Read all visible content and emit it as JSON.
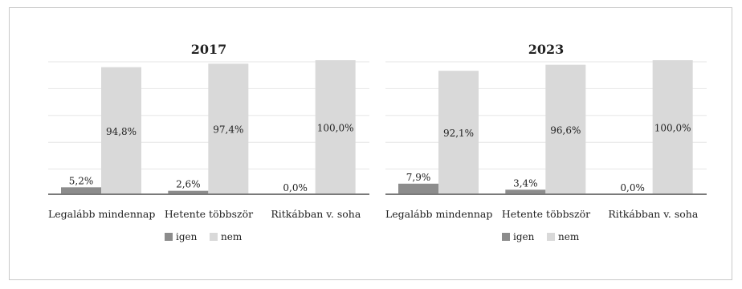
{
  "chart_data": [
    {
      "type": "bar",
      "title": "2017",
      "categories": [
        "Legalább mindennap",
        "Hetente többször",
        "Ritkábban v. soha"
      ],
      "series": [
        {
          "name": "igen",
          "values": [
            5.2,
            2.6,
            0.0
          ],
          "labels": [
            "5,2%",
            "2,6%",
            "0,0%"
          ],
          "color": "#8c8c8c"
        },
        {
          "name": "nem",
          "values": [
            94.8,
            97.4,
            100.0
          ],
          "labels": [
            "94,8%",
            "97,4%",
            "100,0%"
          ],
          "color": "#d9d9d9"
        }
      ],
      "ylim": [
        0,
        100
      ],
      "grid": true,
      "legend": "bottom"
    },
    {
      "type": "bar",
      "title": "2023",
      "categories": [
        "Legalább mindennap",
        "Hetente többször",
        "Ritkábban v. soha"
      ],
      "series": [
        {
          "name": "igen",
          "values": [
            7.9,
            3.4,
            0.0
          ],
          "labels": [
            "7,9%",
            "3,4%",
            "0,0%"
          ],
          "color": "#8c8c8c"
        },
        {
          "name": "nem",
          "values": [
            92.1,
            96.6,
            100.0
          ],
          "labels": [
            "92,1%",
            "96,6%",
            "100,0%"
          ],
          "color": "#d9d9d9"
        }
      ],
      "ylim": [
        0,
        100
      ],
      "grid": true,
      "legend": "bottom"
    }
  ]
}
